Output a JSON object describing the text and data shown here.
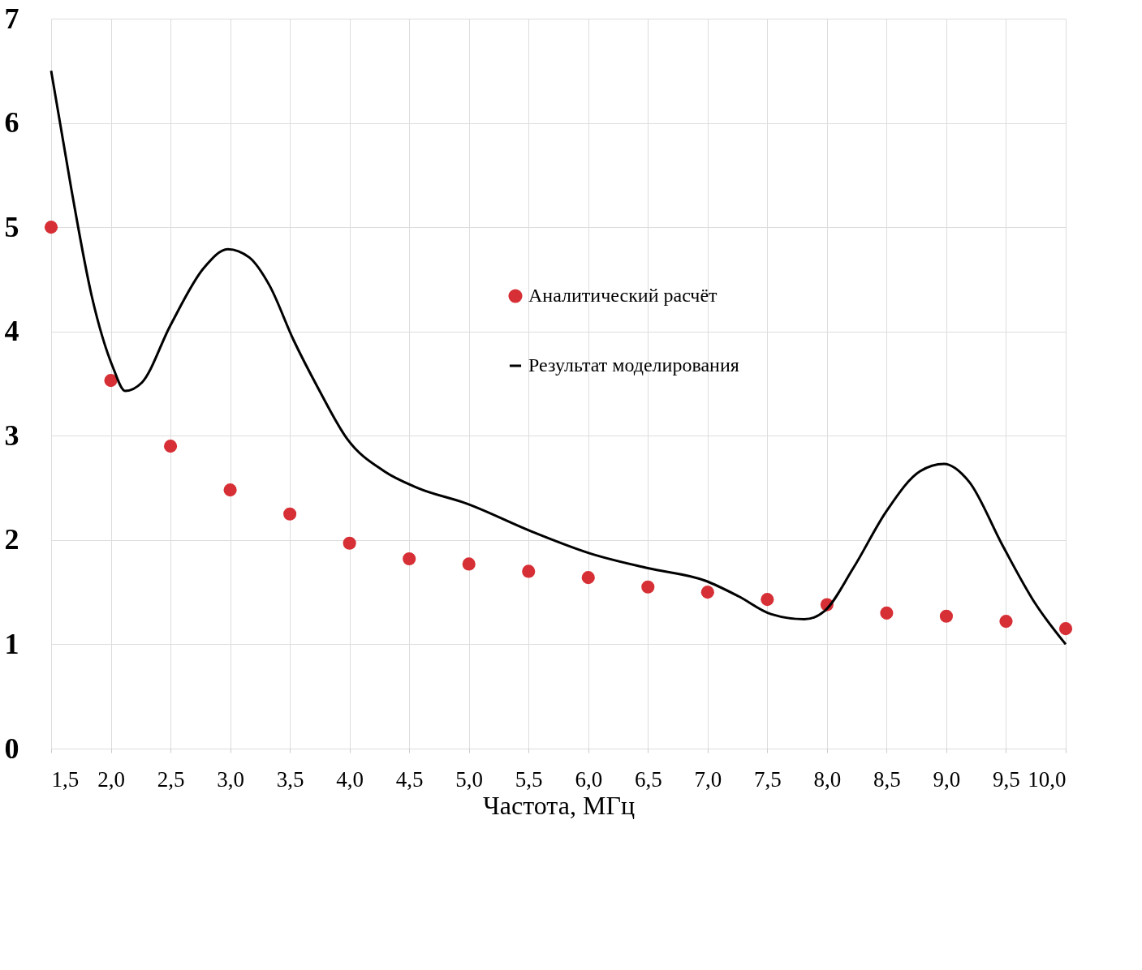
{
  "chart_data": {
    "type": "scatter",
    "xlabel": "Частота, МГц",
    "xlim": [
      1.5,
      10.0
    ],
    "ylim": [
      0,
      7
    ],
    "xticks": [
      {
        "value": 1.5,
        "label": "1,5"
      },
      {
        "value": 2.0,
        "label": "2,0"
      },
      {
        "value": 2.5,
        "label": "2,5"
      },
      {
        "value": 3.0,
        "label": "3,0"
      },
      {
        "value": 3.5,
        "label": "3,5"
      },
      {
        "value": 4.0,
        "label": "4,0"
      },
      {
        "value": 4.5,
        "label": "4,5"
      },
      {
        "value": 5.0,
        "label": "5,0"
      },
      {
        "value": 5.5,
        "label": "5,5"
      },
      {
        "value": 6.0,
        "label": "6,0"
      },
      {
        "value": 6.5,
        "label": "6,5"
      },
      {
        "value": 7.0,
        "label": "7,0"
      },
      {
        "value": 7.5,
        "label": "7,5"
      },
      {
        "value": 8.0,
        "label": "8,0"
      },
      {
        "value": 8.5,
        "label": "8,5"
      },
      {
        "value": 9.0,
        "label": "9,0"
      },
      {
        "value": 9.5,
        "label": "9,5"
      },
      {
        "value": 10.0,
        "label": "10,0"
      }
    ],
    "yticks": [
      0,
      1,
      2,
      3,
      4,
      5,
      6,
      7
    ],
    "grid": true,
    "legend": "center",
    "series": [
      {
        "name": "Аналитический расчёт",
        "color": "#d62f35",
        "marker": "circle",
        "x": [
          1.5,
          2.0,
          2.5,
          3.0,
          3.5,
          4.0,
          4.5,
          5.0,
          5.5,
          6.0,
          6.5,
          7.0,
          7.5,
          8.0,
          8.5,
          9.0,
          9.5,
          10.0
        ],
        "values": [
          5.0,
          3.53,
          2.9,
          2.48,
          2.25,
          1.97,
          1.82,
          1.77,
          1.7,
          1.64,
          1.55,
          1.5,
          1.43,
          1.38,
          1.3,
          1.27,
          1.22,
          1.15
        ]
      },
      {
        "name": "Результат моделирования",
        "type": "line",
        "color": "#000000",
        "line_style": "solid",
        "x": [
          1.5,
          1.67,
          1.84,
          2.02,
          2.12,
          2.26,
          2.5,
          2.78,
          2.98,
          3.16,
          3.33,
          3.53,
          3.74,
          3.98,
          4.29,
          4.57,
          4.98,
          5.53,
          6.02,
          6.5,
          6.98,
          7.26,
          7.53,
          7.81,
          7.98,
          8.22,
          8.5,
          8.78,
          8.98,
          9.19,
          9.47,
          9.74,
          10.0
        ],
        "values": [
          6.5,
          5.36,
          4.34,
          3.65,
          3.43,
          3.51,
          4.06,
          4.61,
          4.79,
          4.71,
          4.44,
          3.92,
          3.45,
          2.97,
          2.66,
          2.5,
          2.35,
          2.08,
          1.87,
          1.73,
          1.61,
          1.46,
          1.29,
          1.24,
          1.32,
          1.73,
          2.28,
          2.66,
          2.73,
          2.56,
          1.95,
          1.4,
          1.0
        ]
      }
    ]
  }
}
